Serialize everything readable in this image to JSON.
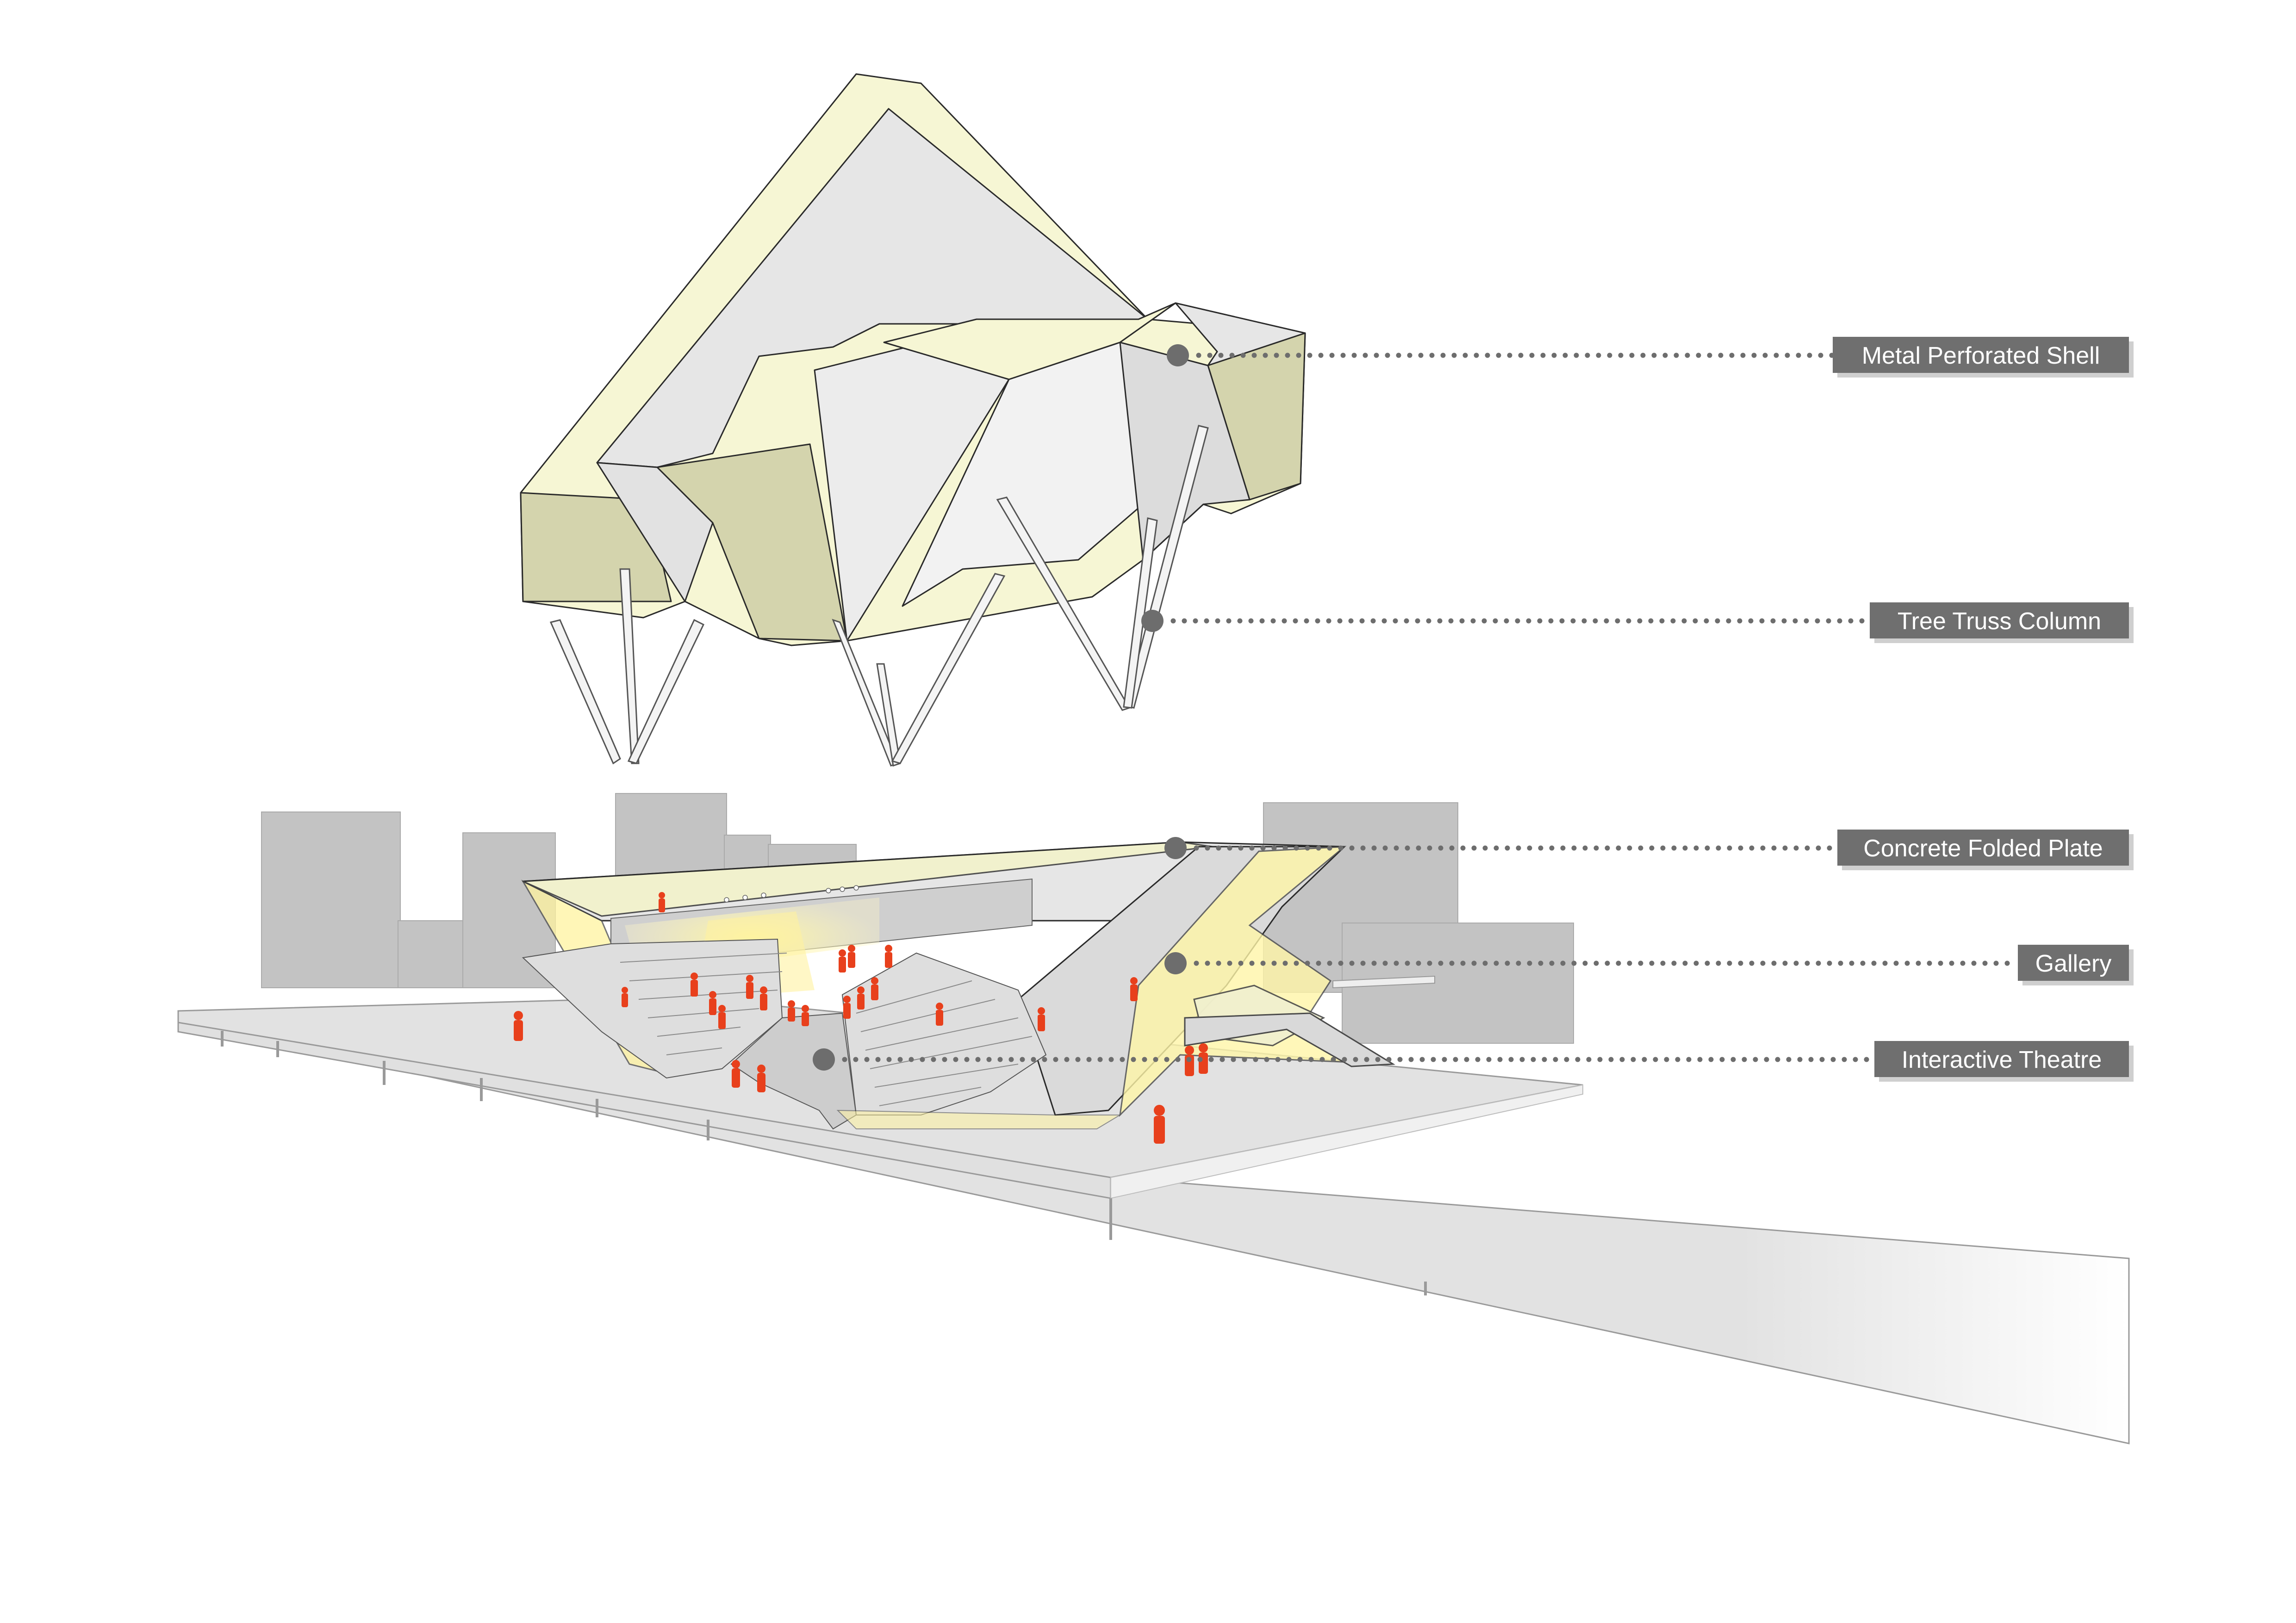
{
  "colors": {
    "shell_light": "#f6f6d4",
    "shell_dark": "#d6d6b0",
    "surface_grey": "#e4e4e4",
    "building_grey": "#c3c3c3",
    "glow_yellow": "#fff6a8",
    "people_red": "#e8401c",
    "label_bg": "#6f6f6f",
    "label_text": "#ffffff",
    "leader_dots": "#6d6d6d"
  },
  "labels": [
    {
      "id": "metal-perforated-shell",
      "text": "Metal Perforated Shell"
    },
    {
      "id": "tree-truss-column",
      "text": "Tree Truss Column"
    },
    {
      "id": "concrete-folded-plate",
      "text": "Concrete Folded Plate"
    },
    {
      "id": "gallery",
      "text": "Gallery"
    },
    {
      "id": "interactive-theatre",
      "text": "Interactive Theatre"
    }
  ]
}
